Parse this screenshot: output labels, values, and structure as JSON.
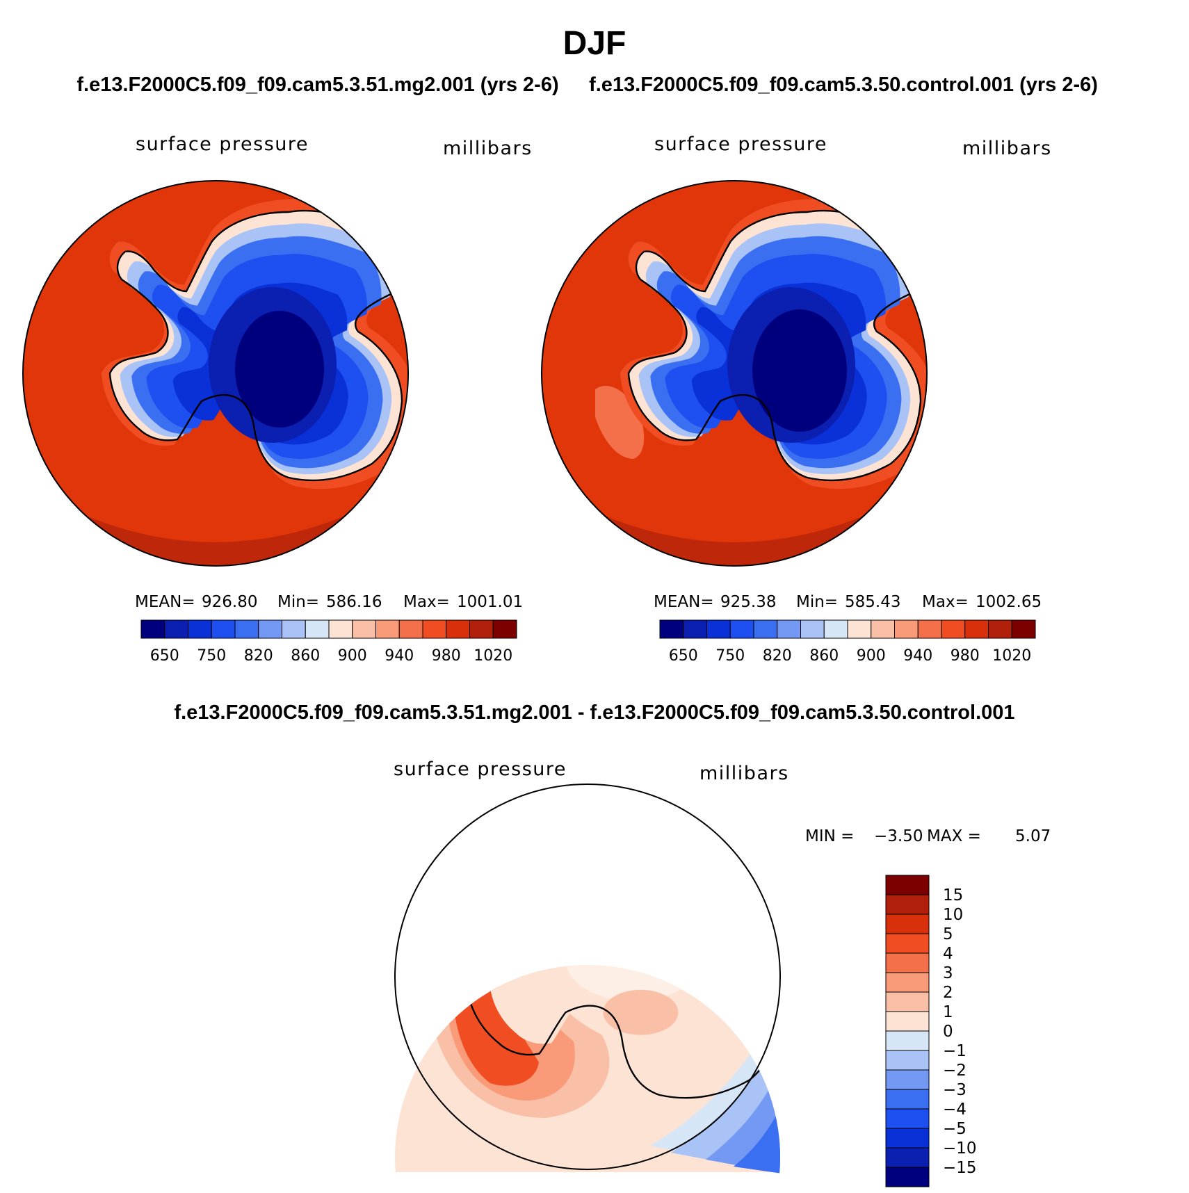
{
  "title": "DJF",
  "chart_data": [
    {
      "type": "contour-map",
      "projection": "south polar stereographic",
      "case_title": "f.e13.F2000C5.f09_f09.cam5.3.51.mg2.001 (yrs 2-6)",
      "variable": "surface pressure",
      "units": "millibars",
      "mean_label": "MEAN=",
      "mean": "926.80",
      "min_label": "Min=",
      "min": "586.16",
      "max_label": "Max=",
      "max": "1001.01",
      "levels": [
        650,
        700,
        750,
        800,
        820,
        840,
        860,
        880,
        900,
        920,
        940,
        960,
        980,
        1000,
        1020
      ],
      "tick_labels": [
        "650",
        "750",
        "820",
        "860",
        "900",
        "940",
        "980",
        "1020"
      ],
      "colors": [
        "#00007f",
        "#0b1fb0",
        "#0a30d8",
        "#1e4ff0",
        "#3b6ff2",
        "#7399f5",
        "#a9c3f6",
        "#d6e6f7",
        "#fde3d3",
        "#f9c0a7",
        "#f99a78",
        "#f4704b",
        "#f04d22",
        "#d7300a",
        "#b1200a",
        "#7d0000"
      ]
    },
    {
      "type": "contour-map",
      "projection": "south polar stereographic",
      "case_title": "f.e13.F2000C5.f09_f09.cam5.3.50.control.001 (yrs 2-6)",
      "variable": "surface pressure",
      "units": "millibars",
      "mean_label": "MEAN=",
      "mean": "925.38",
      "min_label": "Min=",
      "min": "585.43",
      "max_label": "Max=",
      "max": "1002.65",
      "levels": [
        650,
        700,
        750,
        800,
        820,
        840,
        860,
        880,
        900,
        920,
        940,
        960,
        980,
        1000,
        1020
      ],
      "tick_labels": [
        "650",
        "750",
        "820",
        "860",
        "900",
        "940",
        "980",
        "1020"
      ],
      "colors": [
        "#00007f",
        "#0b1fb0",
        "#0a30d8",
        "#1e4ff0",
        "#3b6ff2",
        "#7399f5",
        "#a9c3f6",
        "#d6e6f7",
        "#fde3d3",
        "#f9c0a7",
        "#f99a78",
        "#f4704b",
        "#f04d22",
        "#d7300a",
        "#b1200a",
        "#7d0000"
      ]
    },
    {
      "type": "contour-map-difference",
      "projection": "south polar stereographic",
      "case_title": "f.e13.F2000C5.f09_f09.cam5.3.51.mg2.001 - f.e13.F2000C5.f09_f09.cam5.3.50.control.001",
      "variable": "surface pressure",
      "units": "millibars",
      "min_label": "MIN =",
      "min": "−3.50",
      "max_label": "MAX =",
      "max": "5.07",
      "levels_desc": [
        "15",
        "10",
        "5",
        "4",
        "3",
        "2",
        "1",
        "0",
        "−1",
        "−2",
        "−3",
        "−4",
        "−5",
        "−10",
        "−15"
      ],
      "colors_desc": [
        "#7d0000",
        "#b1200a",
        "#d7300a",
        "#f04d22",
        "#f4704b",
        "#f99a78",
        "#f9c0a7",
        "#fde3d3",
        "#d6e6f7",
        "#a9c3f6",
        "#7399f5",
        "#3b6ff2",
        "#1e4ff0",
        "#0a30d8",
        "#0b1fb0",
        "#00007f"
      ]
    }
  ]
}
